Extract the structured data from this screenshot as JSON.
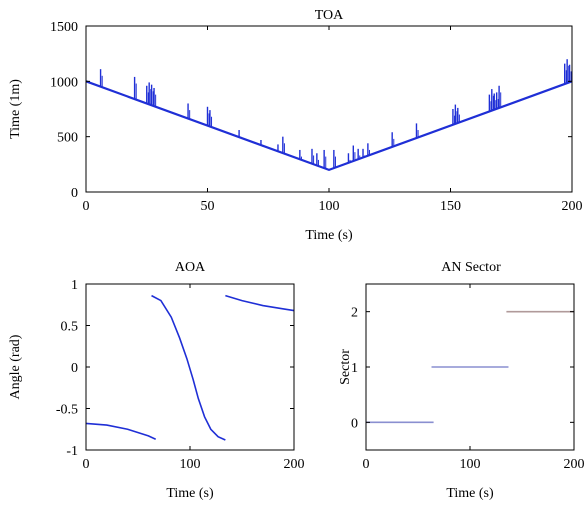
{
  "chart_data": [
    {
      "type": "line",
      "title": "TOA",
      "xlabel": "Time (s)",
      "ylabel": "Time (1m)",
      "xlim": [
        0,
        200
      ],
      "ylim": [
        0,
        1500
      ],
      "xticks": [
        "0",
        "50",
        "100",
        "150",
        "200"
      ],
      "yticks": [
        "0",
        "500",
        "1000",
        "1500"
      ],
      "grid": false,
      "series_color": "#1f2fd6",
      "trend": {
        "x": [
          0,
          100,
          200
        ],
        "y": [
          1000,
          200,
          1000
        ]
      },
      "spikes": [
        {
          "x": 6,
          "top": 1110
        },
        {
          "x": 20,
          "top": 1040
        },
        {
          "x": 25,
          "top": 960
        },
        {
          "x": 26,
          "top": 990
        },
        {
          "x": 27,
          "top": 970
        },
        {
          "x": 28,
          "top": 940
        },
        {
          "x": 42,
          "top": 800
        },
        {
          "x": 50,
          "top": 770
        },
        {
          "x": 51,
          "top": 740
        },
        {
          "x": 63,
          "top": 560
        },
        {
          "x": 72,
          "top": 470
        },
        {
          "x": 79,
          "top": 430
        },
        {
          "x": 81,
          "top": 500
        },
        {
          "x": 88,
          "top": 380
        },
        {
          "x": 93,
          "top": 390
        },
        {
          "x": 95,
          "top": 350
        },
        {
          "x": 98,
          "top": 380
        },
        {
          "x": 102,
          "top": 380
        },
        {
          "x": 108,
          "top": 350
        },
        {
          "x": 110,
          "top": 420
        },
        {
          "x": 112,
          "top": 390
        },
        {
          "x": 114,
          "top": 390
        },
        {
          "x": 116,
          "top": 440
        },
        {
          "x": 126,
          "top": 540
        },
        {
          "x": 136,
          "top": 620
        },
        {
          "x": 151,
          "top": 750
        },
        {
          "x": 152,
          "top": 790
        },
        {
          "x": 153,
          "top": 760
        },
        {
          "x": 166,
          "top": 880
        },
        {
          "x": 167,
          "top": 930
        },
        {
          "x": 168,
          "top": 890
        },
        {
          "x": 169,
          "top": 900
        },
        {
          "x": 170,
          "top": 960
        },
        {
          "x": 197,
          "top": 1160
        },
        {
          "x": 198,
          "top": 1200
        },
        {
          "x": 199,
          "top": 1150
        }
      ]
    },
    {
      "type": "line",
      "title": "AOA",
      "xlabel": "Time (s)",
      "ylabel": "Angle (rad)",
      "xlim": [
        0,
        200
      ],
      "ylim": [
        -1,
        1
      ],
      "xticks": [
        "0",
        "100",
        "200"
      ],
      "yticks": [
        "-1",
        "-0.5",
        "0",
        "0.5",
        "1"
      ],
      "grid": false,
      "series_color": "#1f2fd6",
      "series": [
        {
          "x": [
            0,
            20,
            40,
            60,
            67
          ],
          "y": [
            -0.68,
            -0.7,
            -0.75,
            -0.83,
            -0.87
          ]
        },
        {
          "x": [
            63,
            72,
            82,
            90,
            97,
            103,
            108,
            114,
            120,
            127,
            134
          ],
          "y": [
            0.86,
            0.8,
            0.6,
            0.35,
            0.1,
            -0.15,
            -0.38,
            -0.6,
            -0.75,
            -0.84,
            -0.88
          ]
        },
        {
          "x": [
            134,
            150,
            170,
            190,
            200
          ],
          "y": [
            0.86,
            0.8,
            0.74,
            0.7,
            0.68
          ]
        }
      ]
    },
    {
      "type": "line",
      "title": "AN Sector",
      "xlabel": "Time (s)",
      "ylabel": "Sector",
      "xlim": [
        0,
        200
      ],
      "ylim": [
        -0.5,
        2.5
      ],
      "xticks": [
        "0",
        "100",
        "200"
      ],
      "yticks": [
        "0",
        "1",
        "2"
      ],
      "grid": false,
      "segments": [
        {
          "x0": 0,
          "x1": 65,
          "y": 0,
          "color": "#8a8fd0"
        },
        {
          "x0": 63,
          "x1": 137,
          "y": 1,
          "color": "#8a8fd0"
        },
        {
          "x0": 135,
          "x1": 200,
          "y": 2,
          "color": "#b09a9a"
        }
      ]
    }
  ]
}
